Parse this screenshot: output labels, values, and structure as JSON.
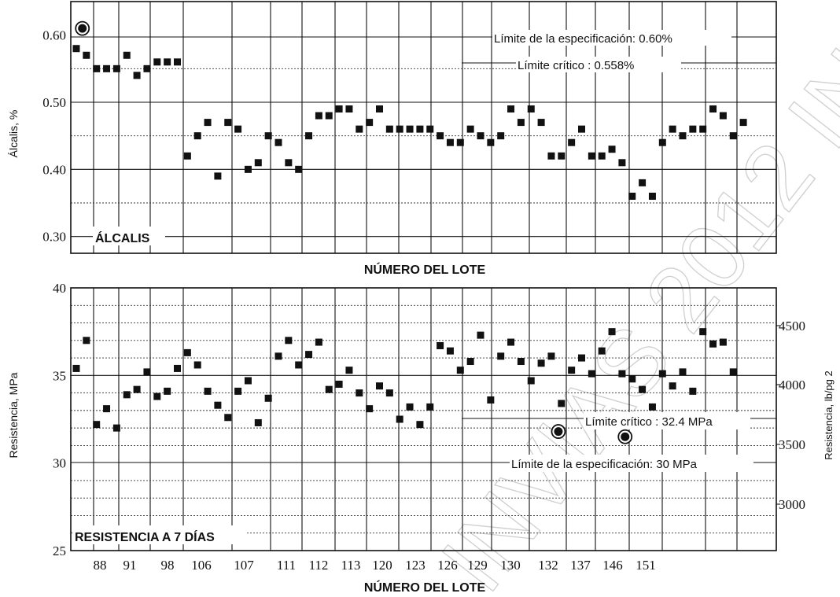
{
  "chart_data": [
    {
      "type": "scatter",
      "panel_label": "ÁLCALIS",
      "ylabel": "Álcalis, %",
      "xlabel": "NÚMERO DEL LOTE",
      "ylim": [
        0.275,
        0.65
      ],
      "yticks": [
        "0.30",
        "0.40",
        "0.50",
        "0.60"
      ],
      "y": [
        0.58,
        0.57,
        0.55,
        0.55,
        0.55,
        0.57,
        0.54,
        0.55,
        0.56,
        0.56,
        0.56,
        0.42,
        0.45,
        0.47,
        0.39,
        0.47,
        0.46,
        0.4,
        0.41,
        0.45,
        0.44,
        0.41,
        0.4,
        0.45,
        0.48,
        0.48,
        0.49,
        0.49,
        0.46,
        0.47,
        0.49,
        0.46,
        0.46,
        0.46,
        0.46,
        0.46,
        0.45,
        0.44,
        0.44,
        0.46,
        0.45,
        0.44,
        0.45,
        0.49,
        0.47,
        0.49,
        0.47,
        0.42,
        0.42,
        0.44,
        0.46,
        0.42,
        0.42,
        0.43,
        0.41,
        0.36,
        0.38,
        0.36,
        0.44,
        0.46,
        0.45,
        0.46,
        0.46,
        0.49,
        0.48,
        0.45,
        0.47
      ],
      "circled_points": [
        {
          "index": 0.6,
          "y": 0.61
        }
      ],
      "reference_lines": [
        {
          "value": 0.6,
          "label": "Límite de la especificación: 0.60%"
        },
        {
          "value": 0.558,
          "label": "Límite crítico : 0.558%"
        }
      ],
      "grid": true
    },
    {
      "type": "scatter",
      "panel_label": "RESISTENCIA A 7 DÍAS",
      "ylabel": "Resistencia, MPa",
      "ylabel_right": "Resistencia, lb/pg 2",
      "xlabel": "NÚMERO DEL LOTE",
      "ylim": [
        25,
        40
      ],
      "yticks": [
        "25",
        "30",
        "35",
        "40"
      ],
      "yticks_right": [
        "3000",
        "3500",
        "4000",
        "4500"
      ],
      "xtick_labels": [
        "88",
        "91",
        "98",
        "106",
        "107",
        "111",
        "112",
        "113",
        "120",
        "123",
        "126",
        "129",
        "130",
        "132",
        "137",
        "146",
        "151"
      ],
      "y": [
        35.4,
        37.0,
        32.2,
        33.1,
        32.0,
        33.9,
        34.2,
        35.2,
        33.8,
        34.1,
        35.4,
        36.3,
        35.6,
        34.1,
        33.3,
        32.6,
        34.1,
        34.7,
        32.3,
        33.7,
        36.1,
        37.0,
        35.6,
        36.2,
        36.9,
        34.2,
        34.5,
        35.3,
        34.0,
        33.1,
        34.4,
        34.0,
        32.5,
        33.2,
        32.2,
        33.2,
        36.7,
        36.4,
        35.3,
        35.8,
        37.3,
        33.6,
        36.1,
        36.9,
        35.8,
        34.7,
        35.7,
        36.1,
        33.4,
        35.3,
        36.0,
        35.1,
        36.4,
        37.5,
        35.1,
        34.8,
        34.2,
        33.2,
        35.1,
        34.4,
        35.2,
        34.1,
        37.5,
        36.8,
        36.9,
        35.2
      ],
      "circled_points": [
        {
          "index": 47.7,
          "y": 31.8
        },
        {
          "index": 54.3,
          "y": 31.5
        }
      ],
      "reference_lines": [
        {
          "value": 32.4,
          "label": "Límite crítico : 32.4 MPa"
        },
        {
          "value": 30,
          "label": "Límite de la especificación: 30 MPa"
        }
      ],
      "grid": true
    }
  ],
  "watermark_text": "INVIAS 2012 INV"
}
